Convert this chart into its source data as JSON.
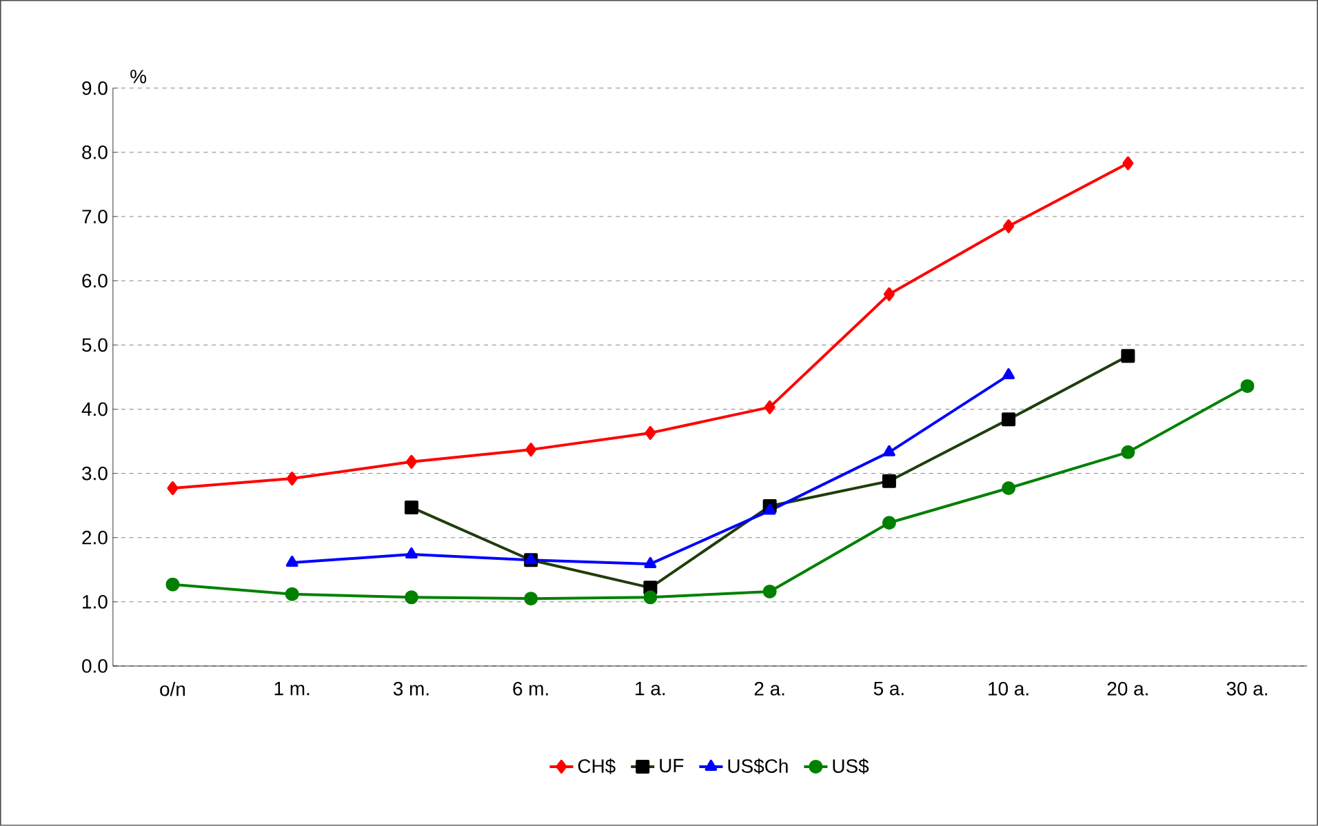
{
  "chart_data": {
    "type": "line",
    "ylabel": "%",
    "categories": [
      "o/n",
      "1 m.",
      "3 m.",
      "6 m.",
      "1 a.",
      "2 a.",
      "5 a.",
      "10 a.",
      "20 a.",
      "30 a."
    ],
    "series": [
      {
        "name": "CH$",
        "color": "#ff0000",
        "marker": "diamond",
        "values": [
          2.77,
          2.92,
          3.18,
          3.37,
          3.63,
          4.03,
          5.79,
          6.85,
          7.83,
          null
        ]
      },
      {
        "name": "UF",
        "color": "#1f3d0c",
        "marker": "square",
        "values": [
          null,
          null,
          2.47,
          1.65,
          1.22,
          2.49,
          2.88,
          3.84,
          4.83,
          null
        ]
      },
      {
        "name": "US$Ch",
        "color": "#0000ff",
        "marker": "triangle",
        "values": [
          null,
          1.61,
          1.74,
          1.65,
          1.59,
          2.42,
          3.33,
          4.53,
          null,
          null
        ]
      },
      {
        "name": "US$",
        "color": "#008000",
        "marker": "circle",
        "values": [
          1.27,
          1.12,
          1.07,
          1.05,
          1.07,
          1.16,
          2.23,
          2.77,
          3.33,
          4.36
        ]
      }
    ],
    "ylim": [
      0,
      9
    ],
    "yticks": [
      {
        "value": 0,
        "label": "0.0"
      },
      {
        "value": 1,
        "label": "1.0"
      },
      {
        "value": 2,
        "label": "2.0"
      },
      {
        "value": 3,
        "label": "3.0"
      },
      {
        "value": 4,
        "label": "4.0"
      },
      {
        "value": 5,
        "label": "5.0"
      },
      {
        "value": 6,
        "label": "6.0"
      },
      {
        "value": 7,
        "label": "7.0"
      },
      {
        "value": 8,
        "label": "8.0"
      },
      {
        "value": 9,
        "label": "9.0"
      }
    ],
    "grid": "y",
    "legend": "bottom",
    "line_style": "solid"
  }
}
